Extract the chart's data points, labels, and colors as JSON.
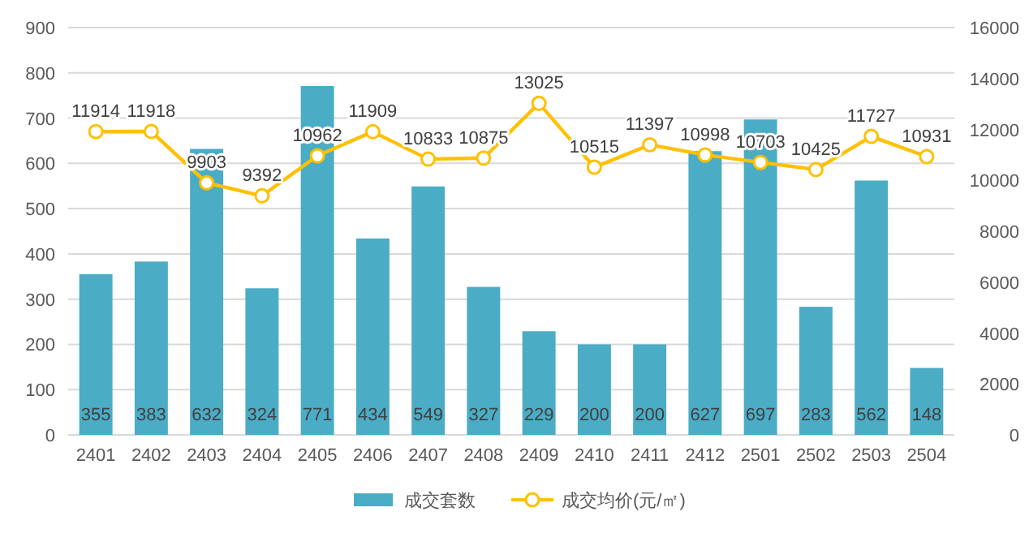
{
  "chart_data": {
    "type": "bar",
    "categories": [
      "2401",
      "2402",
      "2403",
      "2404",
      "2405",
      "2406",
      "2407",
      "2408",
      "2409",
      "2410",
      "2411",
      "2412",
      "2501",
      "2502",
      "2503",
      "2504"
    ],
    "series": [
      {
        "name": "成交套数",
        "color": "#4bacc6",
        "values": [
          355,
          383,
          632,
          324,
          771,
          434,
          549,
          327,
          229,
          200,
          200,
          627,
          697,
          283,
          562,
          148
        ]
      },
      {
        "name": "成交均价(元/㎡)",
        "type": "line",
        "axis": "y2",
        "color": "#ffc000",
        "marker": "circle",
        "values": [
          11914,
          11918,
          9903,
          9392,
          10962,
          11909,
          10833,
          10875,
          13025,
          10515,
          11397,
          10998,
          10703,
          10425,
          11727,
          10931
        ]
      }
    ],
    "ylim": [
      0,
      900
    ],
    "yticks": [
      0,
      100,
      200,
      300,
      400,
      500,
      600,
      700,
      800,
      900
    ],
    "y2lim": [
      0,
      16000
    ],
    "y2ticks": [
      0,
      2000,
      4000,
      6000,
      8000,
      10000,
      12000,
      14000,
      16000
    ],
    "grid": "y",
    "legend": "bottom",
    "data_labels": true
  }
}
